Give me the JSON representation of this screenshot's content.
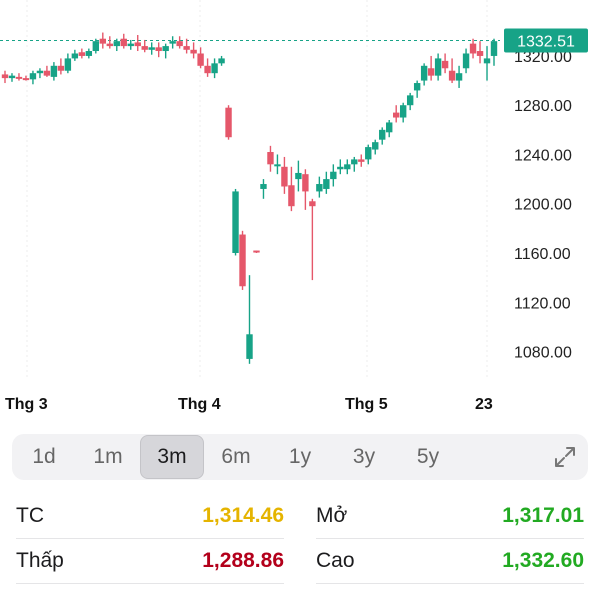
{
  "chart": {
    "current_price_tag": "1332.51",
    "y_ticks": [
      "1320.00",
      "1280.00",
      "1240.00",
      "1200.00",
      "1160.00",
      "1120.00",
      "1080.00"
    ],
    "x_ticks": [
      "Thg 3",
      "Thg 4",
      "Thg 5",
      "23"
    ],
    "colors": {
      "up": "#17a387",
      "down": "#e5576a",
      "tag": "#17a387"
    }
  },
  "chart_data": {
    "type": "candlestick",
    "ylim": [
      1065,
      1350
    ],
    "y_ticks": [
      1320,
      1280,
      1240,
      1200,
      1160,
      1120,
      1080
    ],
    "current_price": 1332.51,
    "candles": [
      [
        1305,
        1308,
        1298,
        1302
      ],
      [
        1302,
        1306,
        1299,
        1304
      ],
      [
        1303,
        1306,
        1300,
        1302
      ],
      [
        1302,
        1304,
        1300,
        1301
      ],
      [
        1301,
        1308,
        1297,
        1306
      ],
      [
        1306,
        1310,
        1302,
        1308
      ],
      [
        1308,
        1312,
        1303,
        1304
      ],
      [
        1303,
        1315,
        1300,
        1312
      ],
      [
        1312,
        1318,
        1305,
        1308
      ],
      [
        1308,
        1322,
        1306,
        1318
      ],
      [
        1318,
        1325,
        1316,
        1322
      ],
      [
        1323,
        1326,
        1318,
        1320
      ],
      [
        1320,
        1326,
        1318,
        1324
      ],
      [
        1324,
        1334,
        1322,
        1332
      ],
      [
        1334,
        1339,
        1326,
        1330
      ],
      [
        1330,
        1336,
        1326,
        1328
      ],
      [
        1328,
        1334,
        1324,
        1332
      ],
      [
        1334,
        1338,
        1326,
        1328
      ],
      [
        1328,
        1333,
        1325,
        1330
      ],
      [
        1331,
        1337,
        1324,
        1328
      ],
      [
        1328,
        1333,
        1323,
        1325
      ],
      [
        1325,
        1331,
        1321,
        1327
      ],
      [
        1327,
        1331,
        1319,
        1324
      ],
      [
        1324,
        1330,
        1318,
        1328
      ],
      [
        1330,
        1336,
        1326,
        1332
      ],
      [
        1332,
        1336,
        1326,
        1328
      ],
      [
        1328,
        1334,
        1322,
        1325
      ],
      [
        1325,
        1331,
        1318,
        1322
      ],
      [
        1322,
        1327,
        1310,
        1312
      ],
      [
        1312,
        1318,
        1303,
        1306
      ],
      [
        1306,
        1318,
        1302,
        1314
      ],
      [
        1314,
        1320,
        1312,
        1318
      ],
      [
        1278,
        1280,
        1252,
        1254
      ],
      [
        1160,
        1212,
        1158,
        1210
      ],
      [
        1175,
        1178,
        1130,
        1133
      ],
      [
        1074,
        1142,
        1070,
        1094
      ],
      [
        1162,
        1162,
        1160,
        1161
      ],
      [
        1212,
        1220,
        1204,
        1216
      ],
      [
        1242,
        1247,
        1226,
        1232
      ],
      [
        1232,
        1240,
        1224,
        1232
      ],
      [
        1230,
        1238,
        1208,
        1214
      ],
      [
        1215,
        1230,
        1194,
        1198
      ],
      [
        1220,
        1235,
        1210,
        1225
      ],
      [
        1224,
        1228,
        1195,
        1210
      ],
      [
        1202,
        1204,
        1138,
        1198
      ],
      [
        1210,
        1222,
        1205,
        1216
      ],
      [
        1212,
        1226,
        1208,
        1220
      ],
      [
        1220,
        1232,
        1214,
        1226
      ],
      [
        1228,
        1236,
        1224,
        1230
      ],
      [
        1228,
        1236,
        1224,
        1232
      ],
      [
        1232,
        1238,
        1226,
        1236
      ],
      [
        1236,
        1240,
        1230,
        1234
      ],
      [
        1236,
        1248,
        1232,
        1246
      ],
      [
        1244,
        1252,
        1240,
        1250
      ],
      [
        1252,
        1262,
        1248,
        1260
      ],
      [
        1258,
        1268,
        1254,
        1266
      ],
      [
        1274,
        1280,
        1266,
        1270
      ],
      [
        1270,
        1282,
        1266,
        1280
      ],
      [
        1280,
        1290,
        1276,
        1288
      ],
      [
        1292,
        1300,
        1286,
        1298
      ],
      [
        1300,
        1314,
        1296,
        1312
      ],
      [
        1310,
        1320,
        1300,
        1304
      ],
      [
        1304,
        1322,
        1300,
        1318
      ],
      [
        1316,
        1322,
        1306,
        1310
      ],
      [
        1308,
        1318,
        1298,
        1300
      ],
      [
        1300,
        1312,
        1294,
        1306
      ],
      [
        1310,
        1326,
        1306,
        1322
      ],
      [
        1330,
        1334,
        1318,
        1322
      ],
      [
        1324,
        1332,
        1314,
        1320
      ],
      [
        1314,
        1328,
        1300,
        1318
      ],
      [
        1320,
        1334,
        1312,
        1332
      ]
    ]
  },
  "ranges": {
    "active": "3m",
    "items": [
      "1d",
      "1m",
      "3m",
      "6m",
      "1y",
      "3y",
      "5y"
    ]
  },
  "stats": {
    "rows": [
      {
        "left": {
          "label": "TC",
          "value": "1,314.46",
          "color": "#e5b400"
        },
        "right": {
          "label": "Mở",
          "value": "1,317.01",
          "color": "#22aa22"
        }
      },
      {
        "left": {
          "label": "Thấp",
          "value": "1,288.86",
          "color": "#b3001b"
        },
        "right": {
          "label": "Cao",
          "value": "1,332.60",
          "color": "#22aa22"
        }
      }
    ]
  }
}
